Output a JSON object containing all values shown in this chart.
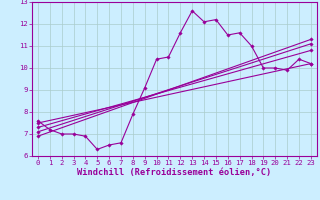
{
  "xlabel": "Windchill (Refroidissement éolien,°C)",
  "x_hours": [
    0,
    1,
    2,
    3,
    4,
    5,
    6,
    7,
    8,
    9,
    10,
    11,
    12,
    13,
    14,
    15,
    16,
    17,
    18,
    19,
    20,
    21,
    22,
    23
  ],
  "actual_line": [
    7.6,
    7.2,
    7.0,
    7.0,
    6.9,
    6.3,
    6.5,
    6.6,
    7.9,
    9.1,
    10.4,
    10.5,
    11.6,
    12.6,
    12.1,
    12.2,
    11.5,
    11.6,
    11.0,
    10.0,
    10.0,
    9.9,
    10.4,
    10.2
  ],
  "trend_lines": [
    {
      "x": [
        0,
        23
      ],
      "y": [
        7.5,
        10.2
      ]
    },
    {
      "x": [
        0,
        23
      ],
      "y": [
        7.3,
        10.8
      ]
    },
    {
      "x": [
        0,
        23
      ],
      "y": [
        7.1,
        11.1
      ]
    },
    {
      "x": [
        0,
        23
      ],
      "y": [
        6.9,
        11.3
      ]
    }
  ],
  "line_color": "#990099",
  "marker": "D",
  "marker_size": 1.8,
  "line_width": 0.8,
  "bg_color": "#cceeff",
  "grid_color": "#aacccc",
  "ylim": [
    6,
    13
  ],
  "yticks": [
    6,
    7,
    8,
    9,
    10,
    11,
    12,
    13
  ],
  "xticks": [
    0,
    1,
    2,
    3,
    4,
    5,
    6,
    7,
    8,
    9,
    10,
    11,
    12,
    13,
    14,
    15,
    16,
    17,
    18,
    19,
    20,
    21,
    22,
    23
  ],
  "tick_fontsize": 5.2,
  "xlabel_fontsize": 6.2
}
